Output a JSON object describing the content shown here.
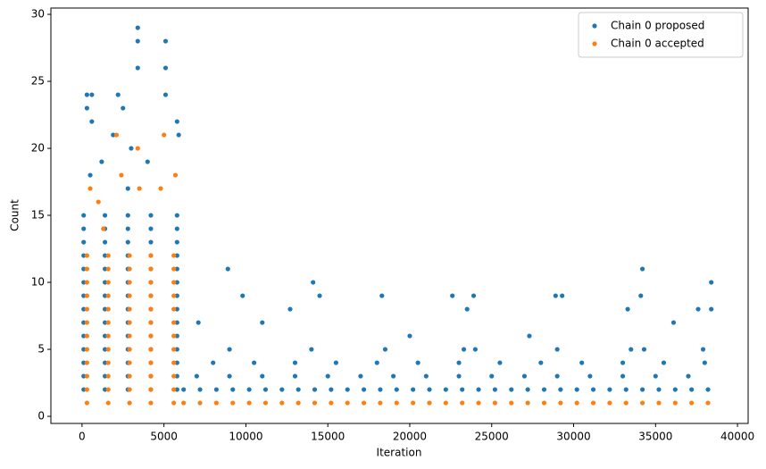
{
  "chart_data": {
    "type": "scatter",
    "xlabel": "Iteration",
    "ylabel": "Count",
    "xlim": [
      -1900,
      40650
    ],
    "ylim": [
      -0.53,
      30.47
    ],
    "xticks": [
      0,
      5000,
      10000,
      15000,
      20000,
      25000,
      30000,
      35000,
      40000
    ],
    "yticks": [
      0,
      5,
      10,
      15,
      20,
      25,
      30
    ],
    "grid": false,
    "legend": "upper right",
    "series": [
      {
        "name": "Chain 0 proposed",
        "color": "#1f77b4",
        "x": [
          100,
          1400,
          2800,
          4200,
          5800,
          100,
          1400,
          2800,
          4200,
          5800,
          100,
          1400,
          2800,
          4200,
          5800,
          100,
          1400,
          2800,
          4200,
          5800,
          100,
          1400,
          2800,
          4200,
          5800,
          100,
          1400,
          2800,
          4200,
          5800,
          100,
          1400,
          2800,
          4200,
          5800,
          100,
          1400,
          2800,
          4200,
          5800,
          100,
          1400,
          2800,
          4200,
          5800,
          100,
          1400,
          2800,
          4200,
          5800,
          100,
          1400,
          2800,
          4200,
          5800,
          100,
          1400,
          2800,
          4200,
          5800,
          100,
          1400,
          2800,
          4200,
          5800,
          100,
          1400,
          2800,
          4200,
          5800,
          300,
          600,
          300,
          600,
          2200,
          2500,
          3400,
          3400,
          3400,
          5100,
          5100,
          5100,
          5800,
          5900,
          1200,
          4000,
          2800,
          500,
          1900,
          3000,
          6200,
          7200,
          8200,
          9200,
          10200,
          11200,
          12200,
          13200,
          14200,
          15200,
          16200,
          17200,
          18200,
          19200,
          20200,
          21200,
          22200,
          23200,
          24200,
          25200,
          26200,
          27200,
          28200,
          29200,
          30200,
          31200,
          32200,
          33200,
          34200,
          35200,
          36200,
          37200,
          38200,
          7000,
          9000,
          11000,
          13000,
          15000,
          17000,
          19000,
          21000,
          23000,
          25000,
          27000,
          29000,
          31000,
          33000,
          35000,
          37000,
          8000,
          10500,
          13000,
          15500,
          18000,
          20500,
          23000,
          25500,
          28000,
          30500,
          33000,
          35500,
          38000,
          9000,
          14000,
          18500,
          23300,
          24000,
          29000,
          33500,
          34300,
          37900,
          8900,
          34200,
          38400,
          14100,
          9800,
          14500,
          18300,
          22600,
          23900,
          29300,
          28900,
          34100,
          7100,
          11000,
          12700,
          23500,
          33300,
          37600,
          38400,
          36100,
          27300,
          20000
        ],
        "values": [
          2,
          2,
          2,
          2,
          2,
          3,
          3,
          3,
          3,
          3,
          4,
          4,
          4,
          4,
          4,
          5,
          5,
          5,
          5,
          5,
          6,
          6,
          6,
          6,
          6,
          7,
          7,
          7,
          7,
          7,
          8,
          8,
          8,
          8,
          8,
          9,
          9,
          9,
          9,
          9,
          10,
          10,
          10,
          10,
          10,
          11,
          11,
          11,
          11,
          11,
          12,
          12,
          12,
          12,
          12,
          13,
          13,
          13,
          13,
          13,
          14,
          14,
          14,
          14,
          14,
          15,
          15,
          15,
          15,
          15,
          24,
          24,
          23,
          22,
          24,
          23,
          29,
          28,
          26,
          28,
          26,
          24,
          22,
          21,
          19,
          19,
          17,
          18,
          21,
          20,
          2,
          2,
          2,
          2,
          2,
          2,
          2,
          2,
          2,
          2,
          2,
          2,
          2,
          2,
          2,
          2,
          2,
          2,
          2,
          2,
          2,
          2,
          2,
          2,
          2,
          2,
          2,
          2,
          2,
          2,
          2,
          2,
          2,
          3,
          3,
          3,
          3,
          3,
          3,
          3,
          3,
          3,
          3,
          3,
          3,
          3,
          3,
          3,
          3,
          4,
          4,
          4,
          4,
          4,
          4,
          4,
          4,
          4,
          4,
          4,
          4,
          4,
          5,
          5,
          5,
          5,
          5,
          5,
          5,
          5,
          5,
          11,
          11,
          10,
          10,
          9,
          9,
          9,
          9,
          9,
          9,
          9,
          9,
          7,
          7,
          8,
          8,
          8,
          8,
          8,
          7,
          6,
          6
        ]
      },
      {
        "name": "Chain 0 accepted",
        "color": "#ff7f0e",
        "x": [
          300,
          1600,
          2900,
          4200,
          5600,
          300,
          1600,
          2900,
          4200,
          5600,
          300,
          1600,
          2900,
          4200,
          5600,
          300,
          1600,
          2900,
          4200,
          5600,
          300,
          1600,
          2900,
          4200,
          5600,
          300,
          1600,
          2900,
          4200,
          5600,
          300,
          1600,
          2900,
          4200,
          5600,
          300,
          1600,
          2900,
          4200,
          5600,
          300,
          1600,
          2900,
          4200,
          5600,
          300,
          1600,
          2900,
          4200,
          5600,
          300,
          1600,
          2900,
          4200,
          5600,
          300,
          1600,
          2900,
          4200,
          5600,
          2100,
          3400,
          5000,
          2400,
          500,
          3500,
          4800,
          1000,
          5700,
          1300,
          6200,
          7200,
          8200,
          9200,
          10200,
          11200,
          12200,
          13200,
          14200,
          15200,
          16200,
          17200,
          18200,
          19200,
          20200,
          21200,
          22200,
          23200,
          24200,
          25200,
          26200,
          27200,
          28200,
          29200,
          30200,
          31200,
          32200,
          33200,
          34200,
          35200,
          36200,
          37200,
          38200
        ],
        "values": [
          1,
          1,
          1,
          1,
          1,
          2,
          2,
          2,
          2,
          2,
          3,
          3,
          3,
          3,
          3,
          4,
          4,
          4,
          4,
          4,
          5,
          5,
          5,
          5,
          5,
          6,
          6,
          6,
          6,
          6,
          7,
          7,
          7,
          7,
          7,
          8,
          8,
          8,
          8,
          8,
          9,
          9,
          9,
          9,
          9,
          10,
          10,
          10,
          10,
          10,
          11,
          11,
          11,
          11,
          11,
          12,
          12,
          12,
          12,
          12,
          21,
          20,
          21,
          18,
          17,
          17,
          17,
          16,
          18,
          14,
          1,
          1,
          1,
          1,
          1,
          1,
          1,
          1,
          1,
          1,
          1,
          1,
          1,
          1,
          1,
          1,
          1,
          1,
          1,
          1,
          1,
          1,
          1,
          1,
          1,
          1,
          1,
          1,
          1,
          1,
          1,
          1,
          1
        ]
      }
    ]
  }
}
